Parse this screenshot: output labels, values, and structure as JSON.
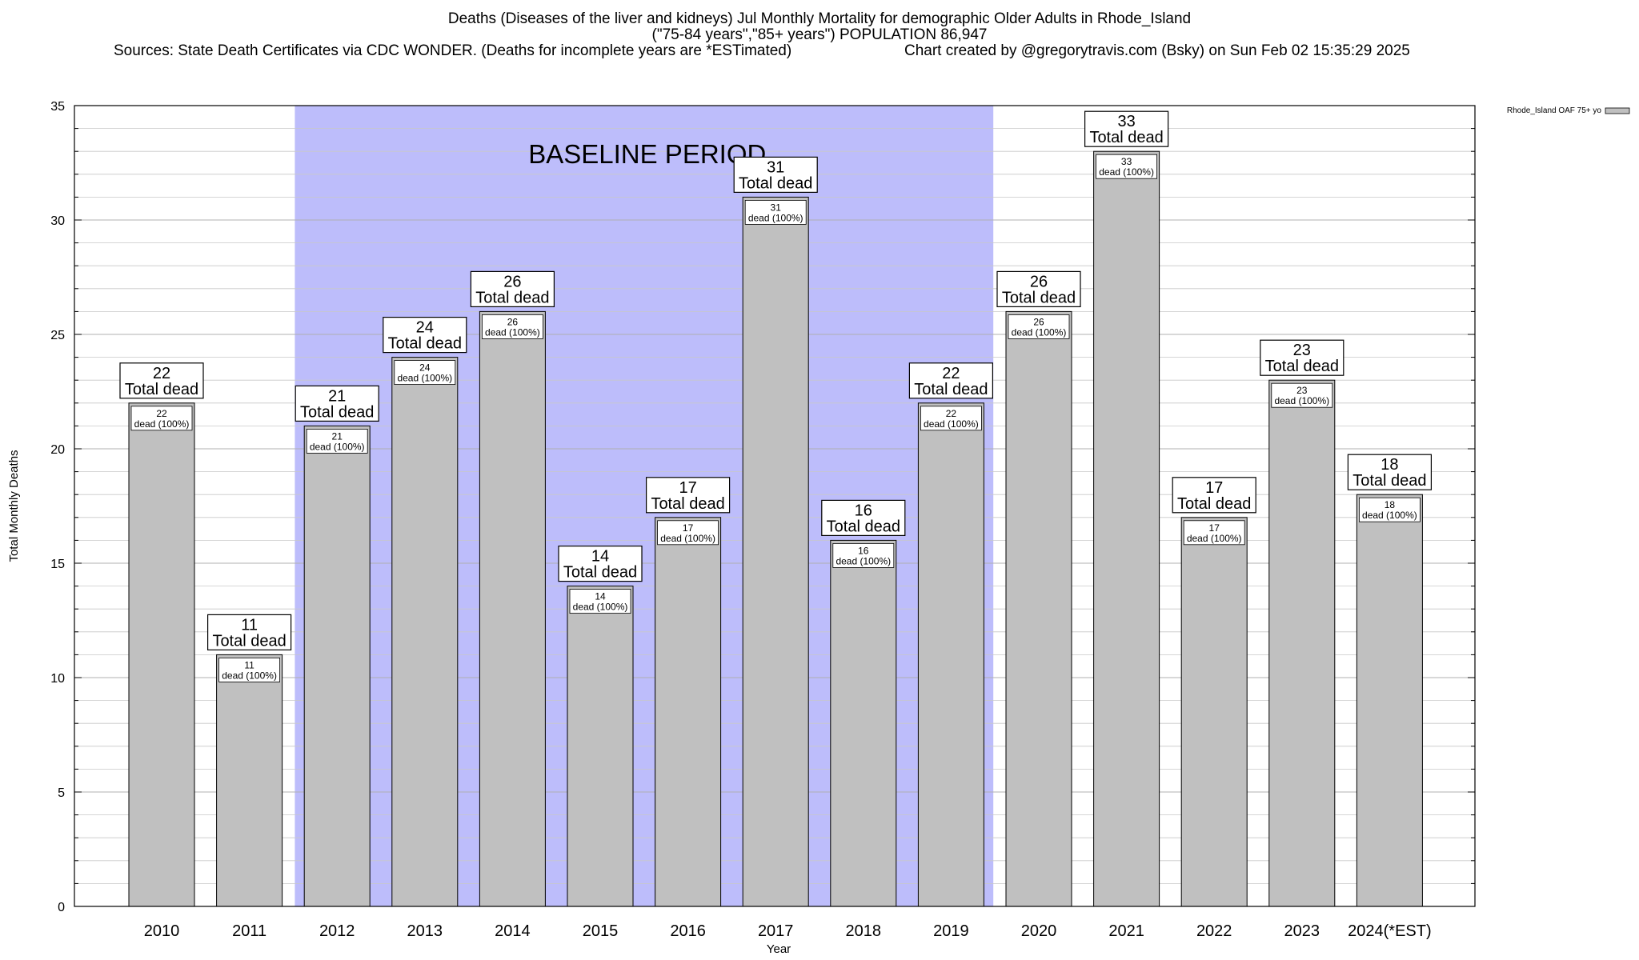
{
  "header": {
    "title_line1": "Deaths (Diseases of the liver and kidneys) Jul Monthly Mortality for demographic Older Adults in Rhode_Island",
    "title_line2": "(\"75-84 years\",\"85+ years\") POPULATION 86,947",
    "sources": "Sources: State Death Certificates via CDC WONDER. (Deaths for incomplete years are *ESTimated)",
    "credit": "Chart created by @gregorytravis.com (Bsky) on Sun Feb 02 15:35:29 2025"
  },
  "chart_data": {
    "type": "bar",
    "title": "Deaths (Diseases of the liver and kidneys) Jul Monthly Mortality for demographic Older Adults in Rhode_Island",
    "xlabel": "Year",
    "ylabel": "Total Monthly Deaths",
    "ylim": [
      0,
      35
    ],
    "yticks": [
      0,
      5,
      10,
      15,
      20,
      25,
      30,
      35
    ],
    "grid": true,
    "legend": {
      "placement": "top-right",
      "entries": [
        "Rhode_Island OAF 75+ yo"
      ]
    },
    "baseline": {
      "label": "BASELINE PERIOD",
      "start": "2012",
      "end": "2019",
      "color": "#bdbdfb"
    },
    "bar_color": "#c0c0c0",
    "categories": [
      "2010",
      "2011",
      "2012",
      "2013",
      "2014",
      "2015",
      "2016",
      "2017",
      "2018",
      "2019",
      "2020",
      "2021",
      "2022",
      "2023",
      "2024(*EST)"
    ],
    "series": [
      {
        "name": "Rhode_Island OAF 75+ yo",
        "values": [
          22,
          11,
          21,
          24,
          26,
          14,
          17,
          31,
          16,
          22,
          26,
          33,
          17,
          23,
          18
        ]
      }
    ],
    "total_label": "Total dead",
    "inner_label_suffix": "dead (100%)"
  }
}
